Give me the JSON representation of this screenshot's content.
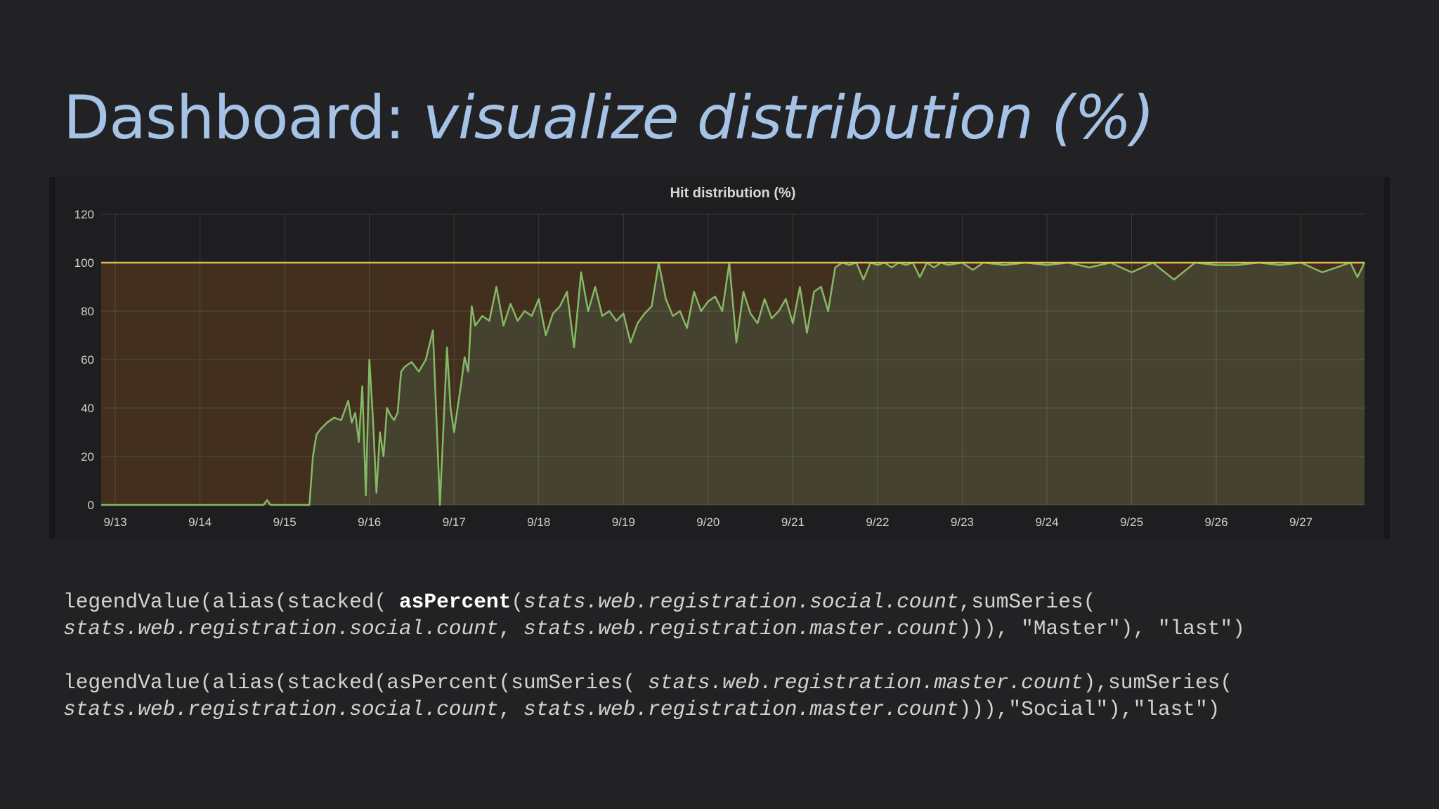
{
  "slide": {
    "title_prefix": "Dashboard:",
    "title_emphasis": "visualize distribution (%)"
  },
  "chart_data": {
    "type": "area",
    "title": "Hit distribution (%)",
    "xlabel": "",
    "ylabel": "",
    "ylim": [
      0,
      120
    ],
    "yticks": [
      0,
      20,
      40,
      60,
      80,
      100,
      120
    ],
    "xticks": [
      "9/13",
      "9/14",
      "9/15",
      "9/16",
      "9/17",
      "9/18",
      "9/19",
      "9/20",
      "9/21",
      "9/22",
      "9/23",
      "9/24",
      "9/25",
      "9/26",
      "9/27"
    ],
    "grid": true,
    "colors": {
      "master": "#e2be4d",
      "social": "#85b966",
      "master_fill": "#45301f",
      "social_fill": "#464530"
    },
    "series": [
      {
        "key": "master",
        "x": [
          "9/12 20:00",
          "9/27 18:00"
        ],
        "values": [
          100,
          100
        ]
      },
      {
        "key": "social",
        "x": [
          "9/12 20:00",
          "9/14 18:00",
          "9/14 19:00",
          "9/14 20:00",
          "9/14 21:00",
          "9/15 07:00",
          "9/15 08:00",
          "9/15 09:00",
          "9/15 10:00",
          "9/15 12:00",
          "9/15 14:00",
          "9/15 16:00",
          "9/15 18:00",
          "9/15 19:00",
          "9/15 20:00",
          "9/15 21:00",
          "9/15 22:00",
          "9/15 23:00",
          "9/16 00:00",
          "9/16 01:00",
          "9/16 02:00",
          "9/16 03:00",
          "9/16 04:00",
          "9/16 05:00",
          "9/16 06:00",
          "9/16 07:00",
          "9/16 08:00",
          "9/16 09:00",
          "9/16 10:00",
          "9/16 12:00",
          "9/16 14:00",
          "9/16 16:00",
          "9/16 18:00",
          "9/16 20:00",
          "9/16 22:00",
          "9/16 23:00",
          "9/17 00:00",
          "9/17 02:00",
          "9/17 03:00",
          "9/17 04:00",
          "9/17 05:00",
          "9/17 06:00",
          "9/17 08:00",
          "9/17 10:00",
          "9/17 12:00",
          "9/17 14:00",
          "9/17 16:00",
          "9/17 18:00",
          "9/17 20:00",
          "9/17 22:00",
          "9/18 00:00",
          "9/18 02:00",
          "9/18 04:00",
          "9/18 06:00",
          "9/18 08:00",
          "9/18 10:00",
          "9/18 12:00",
          "9/18 14:00",
          "9/18 16:00",
          "9/18 18:00",
          "9/18 20:00",
          "9/18 22:00",
          "9/19 00:00",
          "9/19 02:00",
          "9/19 04:00",
          "9/19 06:00",
          "9/19 08:00",
          "9/19 10:00",
          "9/19 12:00",
          "9/19 14:00",
          "9/19 16:00",
          "9/19 18:00",
          "9/19 20:00",
          "9/19 22:00",
          "9/20 00:00",
          "9/20 02:00",
          "9/20 04:00",
          "9/20 06:00",
          "9/20 08:00",
          "9/20 10:00",
          "9/20 12:00",
          "9/20 14:00",
          "9/20 16:00",
          "9/20 18:00",
          "9/20 20:00",
          "9/20 22:00",
          "9/21 00:00",
          "9/21 02:00",
          "9/21 04:00",
          "9/21 06:00",
          "9/21 08:00",
          "9/21 10:00",
          "9/21 12:00",
          "9/21 14:00",
          "9/21 16:00",
          "9/21 18:00",
          "9/21 20:00",
          "9/21 22:00",
          "9/22 00:00",
          "9/22 02:00",
          "9/22 04:00",
          "9/22 06:00",
          "9/22 08:00",
          "9/22 10:00",
          "9/22 12:00",
          "9/22 14:00",
          "9/22 16:00",
          "9/22 18:00",
          "9/22 20:00",
          "9/23 00:00",
          "9/23 03:00",
          "9/23 06:00",
          "9/23 12:00",
          "9/23 18:00",
          "9/24 00:00",
          "9/24 06:00",
          "9/24 12:00",
          "9/24 18:00",
          "9/25 00:00",
          "9/25 06:00",
          "9/25 12:00",
          "9/25 18:00",
          "9/26 00:00",
          "9/26 06:00",
          "9/26 12:00",
          "9/26 18:00",
          "9/27 00:00",
          "9/27 06:00",
          "9/27 12:00",
          "9/27 14:00",
          "9/27 16:00",
          "9/27 18:00"
        ],
        "values": [
          0,
          0,
          2,
          0,
          0,
          0,
          20,
          29,
          31,
          34,
          36,
          35,
          43,
          34,
          38,
          26,
          49,
          4,
          60,
          36,
          5,
          30,
          20,
          40,
          37,
          35,
          38,
          55,
          57,
          59,
          55,
          60,
          72,
          0,
          65,
          40,
          30,
          50,
          61,
          55,
          82,
          74,
          78,
          76,
          90,
          74,
          83,
          76,
          80,
          78,
          85,
          70,
          79,
          82,
          88,
          65,
          96,
          80,
          90,
          78,
          80,
          76,
          79,
          67,
          75,
          79,
          82,
          100,
          85,
          78,
          80,
          73,
          88,
          80,
          84,
          86,
          80,
          100,
          67,
          88,
          79,
          75,
          85,
          77,
          80,
          85,
          75,
          90,
          71,
          88,
          90,
          80,
          98,
          100,
          99,
          100,
          93,
          100,
          99,
          100,
          98,
          100,
          99,
          100,
          94,
          100,
          98,
          100,
          99,
          100,
          97,
          100,
          99,
          100,
          99,
          100,
          98,
          100,
          96,
          100,
          93,
          100,
          99,
          99,
          100,
          99,
          100,
          96,
          99,
          100,
          94,
          100
        ]
      }
    ]
  },
  "code": {
    "line1": {
      "a": "legendValue(alias(stacked( ",
      "b": "asPercent",
      "c": "(",
      "d": "stats.web.registration.social.count",
      "e": ",sumSeries("
    },
    "line2": {
      "a": "stats.web.registration.social.count",
      "b": ", ",
      "c": "stats.web.registration.master.count",
      "d": "))), \"Master\"), \"last\")"
    },
    "line3": {
      "a": "legendValue(alias(stacked(asPercent(sumSeries( ",
      "b": "stats.web.registration.master.count",
      "c": "),sumSeries("
    },
    "line4": {
      "a": "stats.web.registration.social.count",
      "b": ", ",
      "c": "stats.web.registration.master.count",
      "d": "))),\"Social\"),\"last\")"
    }
  }
}
